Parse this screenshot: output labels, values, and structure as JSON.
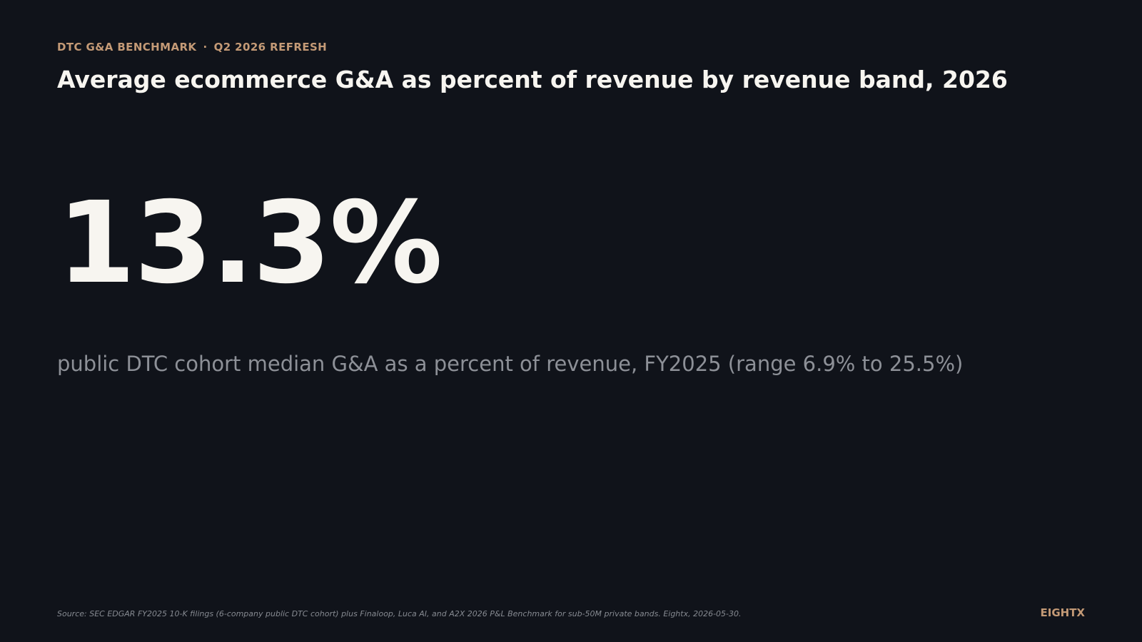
{
  "header": {
    "eyebrow_left": "DTC G&A BENCHMARK",
    "eyebrow_separator": "·",
    "eyebrow_right": "Q2 2026 REFRESH",
    "title": "Average ecommerce G&A as percent of revenue by revenue band, 2026"
  },
  "stat": {
    "value": "13.3%",
    "caption": "public DTC cohort median G&A as a percent of revenue, FY2025 (range 6.9% to 25.5%)"
  },
  "footer": {
    "source": "Source: SEC EDGAR FY2025 10-K filings (6-company public DTC cohort) plus Finaloop, Luca AI, and A2X 2026 P&L Benchmark for sub-50M private bands. Eightx, 2026-05-30.",
    "brand": "EIGHTX"
  },
  "colors": {
    "background": "#10131a",
    "accent": "#c49a76",
    "primary_text": "#f7f5f0",
    "muted_text": "#8d9097"
  }
}
